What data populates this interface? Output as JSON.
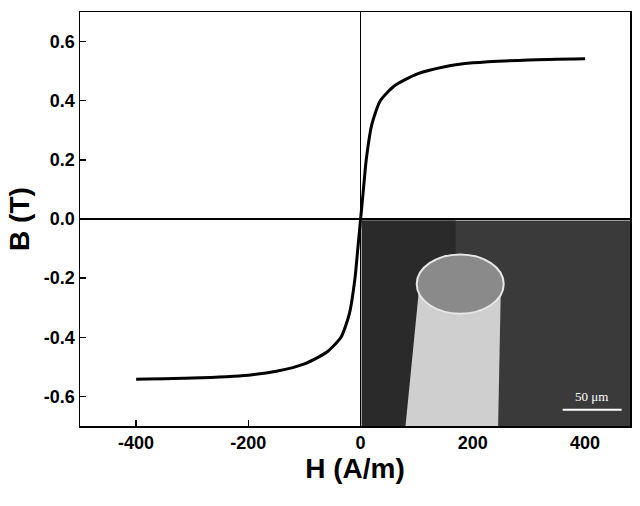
{
  "chart_data": {
    "type": "line",
    "xlabel": "H (A/m)",
    "ylabel": "B (T)",
    "x": [
      -400,
      -300,
      -200,
      -150,
      -100,
      -60,
      -35,
      -20,
      -10,
      -5,
      0,
      5,
      10,
      20,
      35,
      60,
      100,
      150,
      200,
      300,
      400
    ],
    "values": [
      -0.542,
      -0.538,
      -0.528,
      -0.515,
      -0.49,
      -0.45,
      -0.4,
      -0.32,
      -0.2,
      -0.1,
      0,
      0.1,
      0.2,
      0.32,
      0.4,
      0.45,
      0.49,
      0.515,
      0.528,
      0.538,
      0.542
    ],
    "color": "#000000",
    "xlim": [
      -500,
      480
    ],
    "ylim": [
      -0.7,
      0.7
    ],
    "xticks": [
      -400,
      -200,
      0,
      200,
      400
    ],
    "yticks": [
      -0.6,
      -0.4,
      -0.2,
      {
        "value": 0,
        "label": "0.0"
      },
      0.2,
      0.4,
      0.6
    ],
    "grid": false,
    "annotations": [
      "50 μm"
    ]
  }
}
